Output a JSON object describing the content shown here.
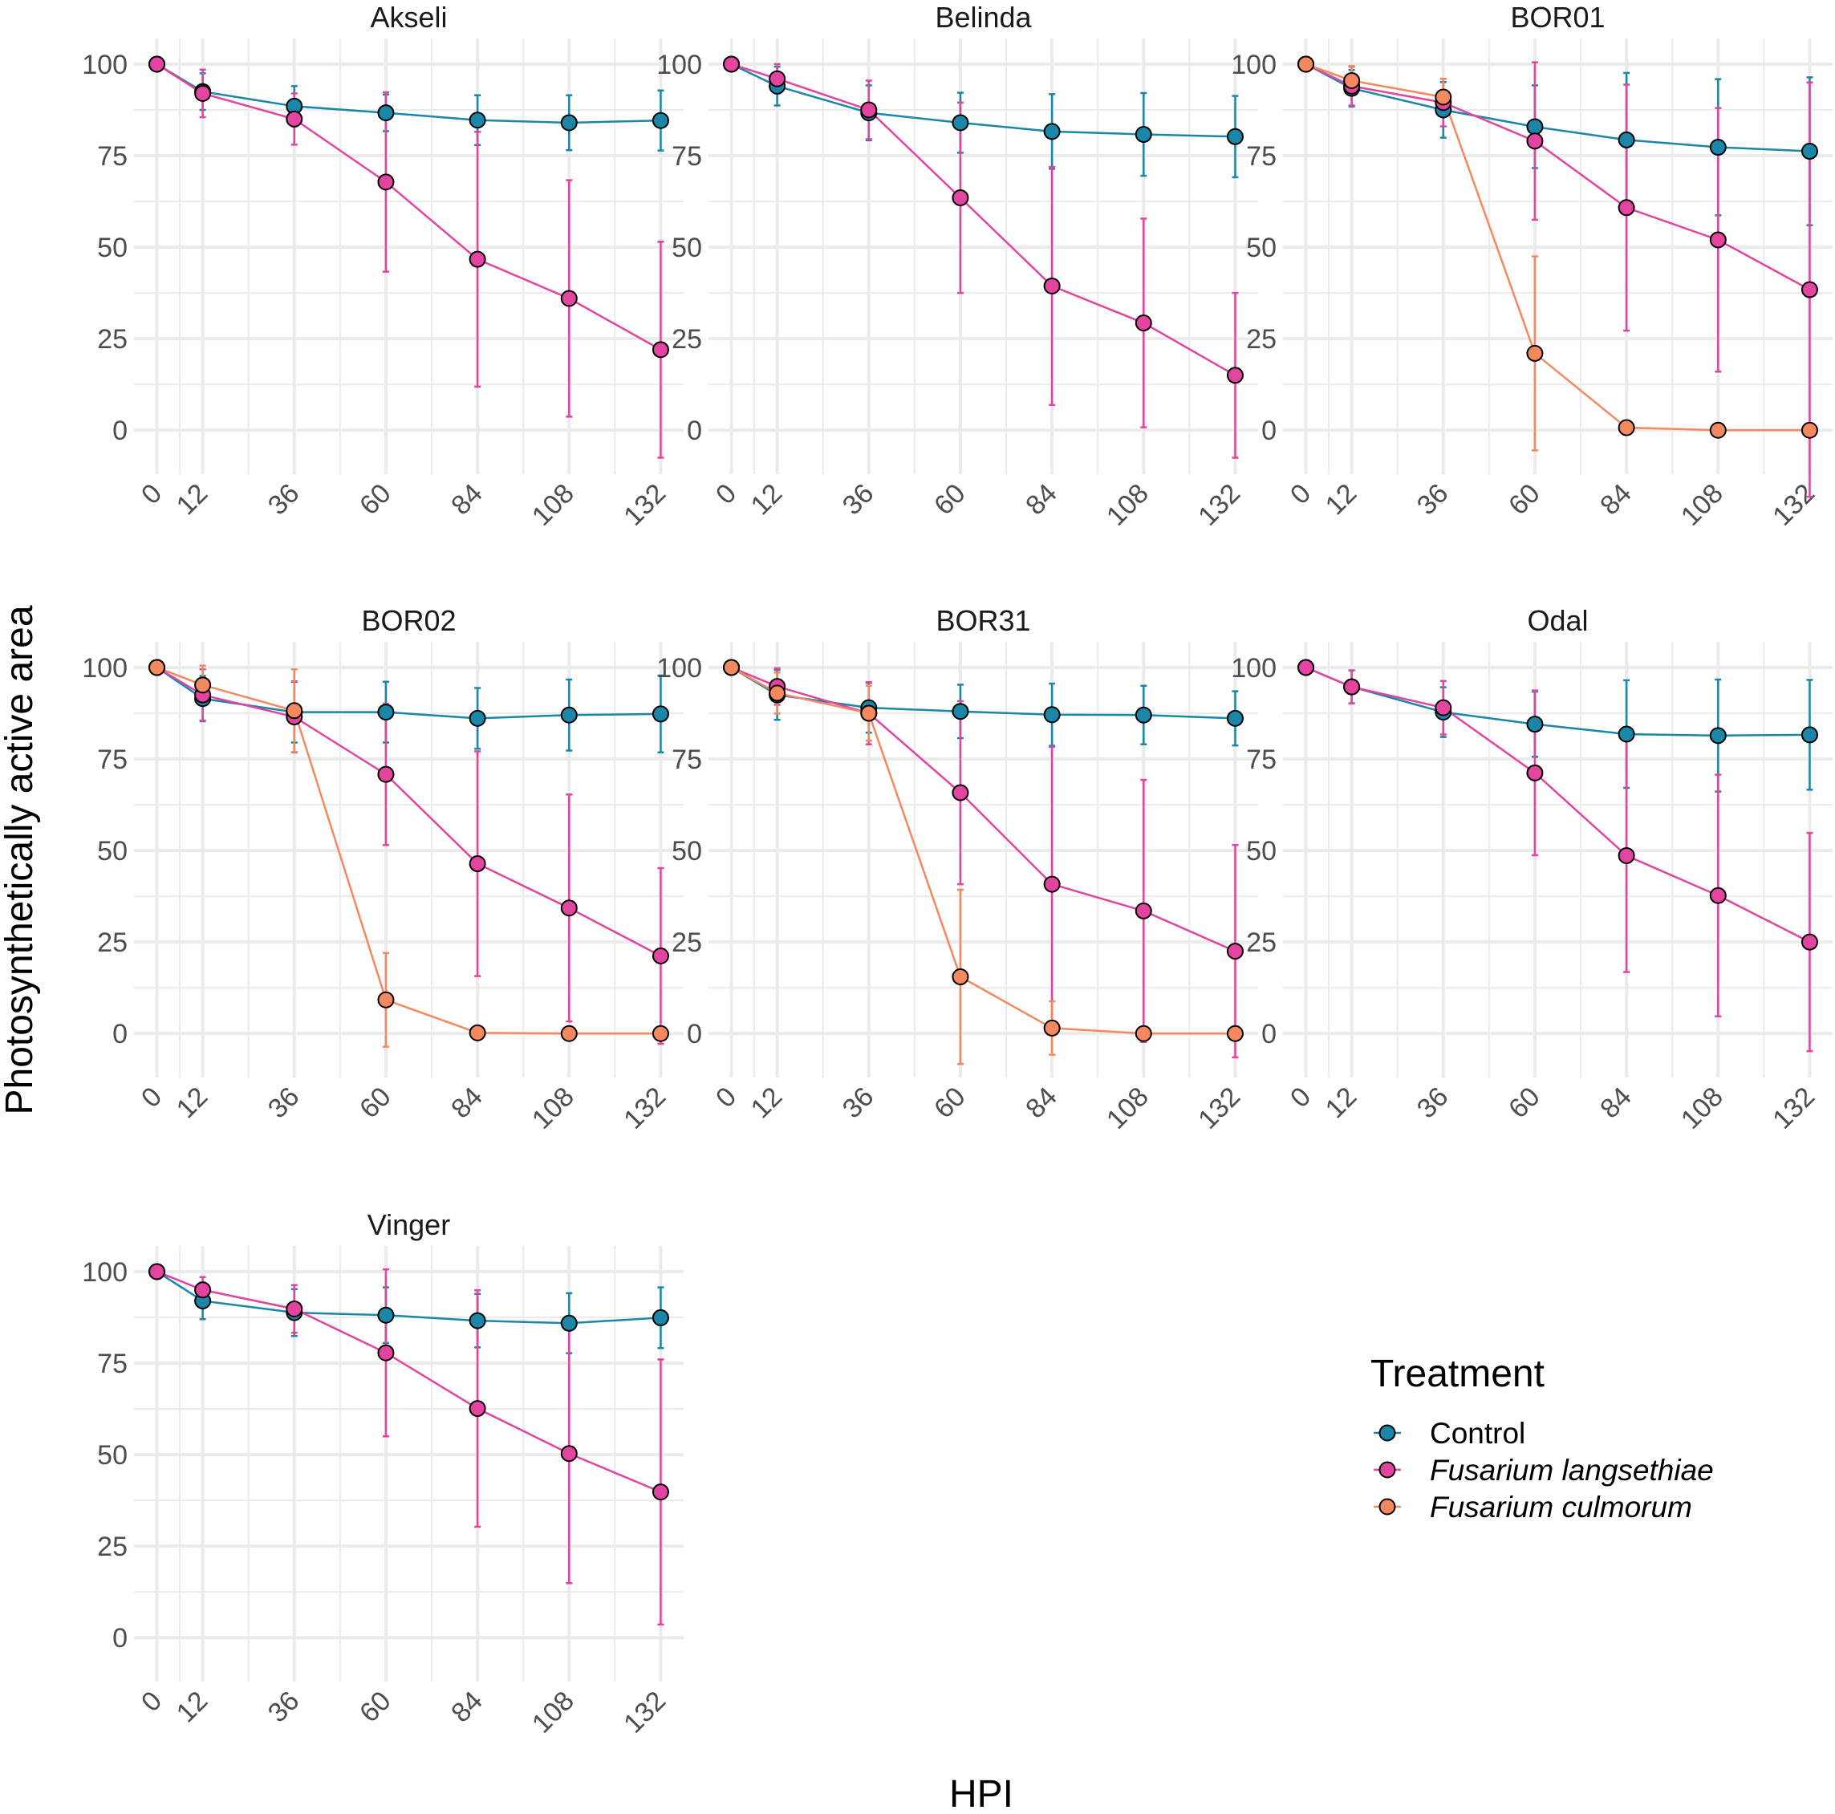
{
  "chart_data": {
    "type": "line",
    "xlabel": "HPI",
    "ylabel": "Photosynthetically active area",
    "x": [
      0,
      12,
      36,
      60,
      84,
      108,
      132
    ],
    "x_tick_labels": [
      "0",
      "12",
      "36",
      "60",
      "84",
      "108",
      "132"
    ],
    "y_ticks": [
      0,
      25,
      50,
      75,
      100
    ],
    "y_tick_labels": [
      "0",
      "25",
      "50",
      "75",
      "100"
    ],
    "ylim": [
      -12,
      107
    ],
    "xlim": [
      -6,
      138
    ],
    "grid": true,
    "legend": {
      "title": "Treatment",
      "position": "right",
      "entries": [
        {
          "key": "control",
          "label": "Control",
          "italic": false
        },
        {
          "key": "flang",
          "label": "Fusarium langsethiae",
          "italic": true
        },
        {
          "key": "fculm",
          "label": "Fusarium culmorum",
          "italic": true
        }
      ]
    },
    "colors": {
      "control": "#1a87a8",
      "flang": "#e2449f",
      "fculm": "#f4895f",
      "grid": "#ebebeb",
      "point_outline": "#000000"
    },
    "panels": [
      {
        "title": "Akseli",
        "series": [
          {
            "key": "control",
            "values": [
              100,
              92.5,
              88.5,
              86.7,
              84.7,
              84,
              84.6
            ],
            "errors": [
              0,
              5,
              5.5,
              5,
              6.8,
              7.5,
              8.2
            ]
          },
          {
            "key": "flang",
            "values": [
              100,
              92,
              85,
              67.8,
              46.7,
              36,
              22
            ],
            "errors": [
              0,
              6.5,
              7,
              24.5,
              34.8,
              32.3,
              29.5
            ]
          }
        ]
      },
      {
        "title": "Belinda",
        "series": [
          {
            "key": "control",
            "values": [
              100,
              94,
              86.7,
              84,
              81.6,
              80.8,
              80.2
            ],
            "errors": [
              0,
              5.3,
              7.5,
              8.2,
              10.2,
              11.3,
              11.1
            ]
          },
          {
            "key": "flang",
            "values": [
              100,
              96,
              87.5,
              63.5,
              39.4,
              29.3,
              15
            ],
            "errors": [
              0,
              4,
              8,
              26,
              32.5,
              28.5,
              22.5
            ]
          }
        ]
      },
      {
        "title": "BOR01",
        "series": [
          {
            "key": "control",
            "values": [
              100,
              93.4,
              87.5,
              82.9,
              79.3,
              77.3,
              76.2
            ],
            "errors": [
              0,
              5,
              7.6,
              11.3,
              18.3,
              18.6,
              20.2
            ]
          },
          {
            "key": "flang",
            "values": [
              100,
              94,
              89.5,
              79,
              60.8,
              52,
              38.4
            ],
            "errors": [
              0,
              5.3,
              6.5,
              21.5,
              33.6,
              36,
              56.6
            ]
          },
          {
            "key": "fculm",
            "values": [
              100,
              95.5,
              91,
              21,
              0.7,
              0,
              0
            ],
            "errors": [
              0,
              4,
              5,
              26.5,
              0.5,
              0.3,
              0.3
            ]
          }
        ]
      },
      {
        "title": "BOR02",
        "series": [
          {
            "key": "control",
            "values": [
              100,
              91.5,
              87.8,
              87.8,
              86.1,
              87,
              87.3
            ],
            "errors": [
              0,
              6.2,
              8.3,
              8.3,
              8.3,
              9.7,
              10.5
            ]
          },
          {
            "key": "flang",
            "values": [
              100,
              92.5,
              86.5,
              70.8,
              46.4,
              34.3,
              21.2
            ],
            "errors": [
              0,
              7,
              9.7,
              19.3,
              30.7,
              31,
              24
            ]
          },
          {
            "key": "fculm",
            "values": [
              100,
              95.2,
              88.2,
              9.2,
              0.2,
              0,
              0
            ],
            "errors": [
              0,
              5.3,
              11.3,
              12.8,
              0.3,
              0.3,
              0.3
            ]
          }
        ]
      },
      {
        "title": "BOR31",
        "series": [
          {
            "key": "control",
            "values": [
              100,
              92.5,
              89,
              88,
              87.1,
              87,
              86.1
            ],
            "errors": [
              0,
              6.8,
              6.8,
              7.3,
              8.5,
              8,
              7.4
            ]
          },
          {
            "key": "flang",
            "values": [
              100,
              94.8,
              87.5,
              65.8,
              40.8,
              33.5,
              22.5
            ],
            "errors": [
              0,
              5,
              8.5,
              25,
              37.5,
              35.8,
              29
            ]
          },
          {
            "key": "fculm",
            "values": [
              100,
              93,
              87.5,
              15.5,
              1.5,
              0,
              0
            ],
            "errors": [
              0,
              5.6,
              7.5,
              23.8,
              7.3,
              0.3,
              0.3
            ]
          }
        ]
      },
      {
        "title": "Odal",
        "series": [
          {
            "key": "control",
            "values": [
              100,
              94.7,
              87.8,
              84.5,
              81.8,
              81.4,
              81.6
            ],
            "errors": [
              0,
              4.5,
              6.8,
              8.9,
              14.7,
              15.3,
              15
            ]
          },
          {
            "key": "flang",
            "values": [
              100,
              94.7,
              89,
              71.2,
              48.6,
              37.7,
              25
            ],
            "errors": [
              0,
              4.5,
              7.3,
              22.5,
              31.8,
              33,
              29.8
            ]
          }
        ]
      },
      {
        "title": "Vinger",
        "series": [
          {
            "key": "control",
            "values": [
              100,
              92,
              88.8,
              88.1,
              86.6,
              85.9,
              87.4
            ],
            "errors": [
              0,
              5,
              6.4,
              7.6,
              7.3,
              8.2,
              8.3
            ]
          },
          {
            "key": "flang",
            "values": [
              100,
              95,
              89.8,
              77.8,
              62.6,
              50.3,
              39.8
            ],
            "errors": [
              0,
              3.5,
              6.5,
              22.8,
              32.3,
              35.4,
              36.2
            ]
          }
        ]
      }
    ]
  }
}
